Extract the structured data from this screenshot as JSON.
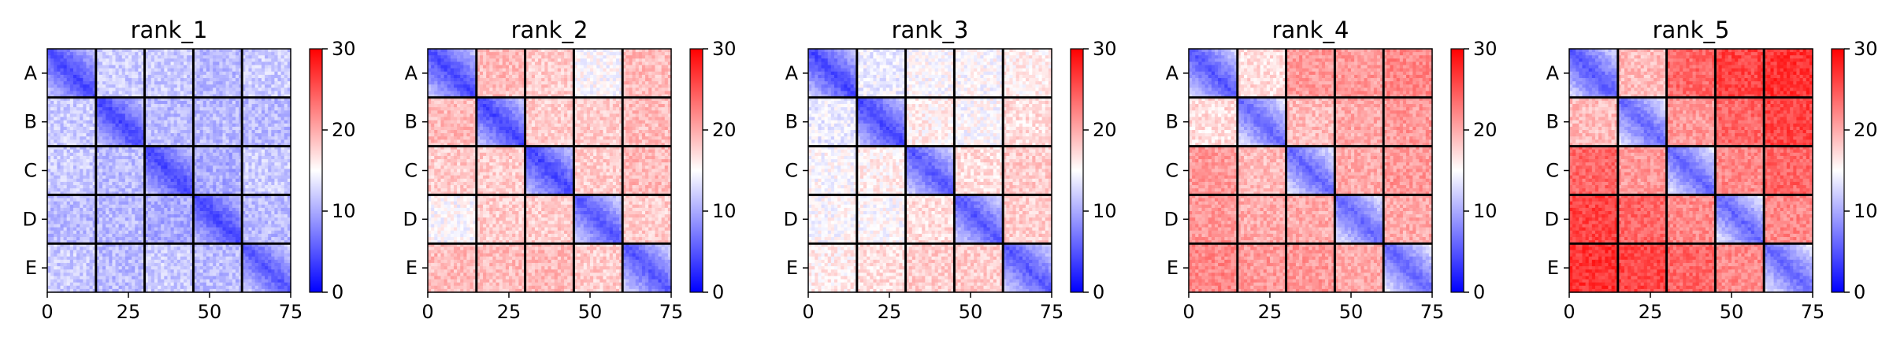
{
  "chart_data": [
    {
      "type": "heatmap",
      "title": "rank_1",
      "categories": [
        "A",
        "B",
        "C",
        "D",
        "E"
      ],
      "x_ticks": [
        0,
        25,
        50,
        75
      ],
      "xlim": [
        0,
        75
      ],
      "block_size": 15,
      "colorbar": {
        "min": 0,
        "max": 30,
        "ticks": [
          0,
          10,
          20,
          30
        ],
        "colors": [
          "#0000ff",
          "#ffffff",
          "#ff0000"
        ]
      },
      "block_values": [
        [
          4,
          12,
          12,
          11,
          12
        ],
        [
          12,
          4,
          11,
          11,
          11
        ],
        [
          12,
          11,
          4,
          10,
          12
        ],
        [
          11,
          11,
          10,
          4,
          11
        ],
        [
          12,
          11,
          12,
          11,
          5
        ]
      ]
    },
    {
      "type": "heatmap",
      "title": "rank_2",
      "categories": [
        "A",
        "B",
        "C",
        "D",
        "E"
      ],
      "x_ticks": [
        0,
        25,
        50,
        75
      ],
      "xlim": [
        0,
        75
      ],
      "block_size": 15,
      "colorbar": {
        "min": 0,
        "max": 30,
        "ticks": [
          0,
          10,
          20,
          30
        ],
        "colors": [
          "#0000ff",
          "#ffffff",
          "#ff0000"
        ]
      },
      "block_values": [
        [
          4,
          19,
          18,
          15,
          19
        ],
        [
          19,
          4,
          18,
          18,
          19
        ],
        [
          18,
          18,
          4,
          18,
          19
        ],
        [
          15,
          18,
          18,
          5,
          18
        ],
        [
          19,
          19,
          19,
          18,
          5
        ]
      ]
    },
    {
      "type": "heatmap",
      "title": "rank_3",
      "categories": [
        "A",
        "B",
        "C",
        "D",
        "E"
      ],
      "x_ticks": [
        0,
        25,
        50,
        75
      ],
      "xlim": [
        0,
        75
      ],
      "block_size": 15,
      "colorbar": {
        "min": 0,
        "max": 30,
        "ticks": [
          0,
          10,
          20,
          30
        ],
        "colors": [
          "#0000ff",
          "#ffffff",
          "#ff0000"
        ]
      },
      "block_values": [
        [
          4,
          14,
          15,
          15,
          16
        ],
        [
          14,
          4,
          16,
          15,
          17
        ],
        [
          15,
          16,
          5,
          17,
          18
        ],
        [
          15,
          15,
          17,
          5,
          18
        ],
        [
          16,
          17,
          18,
          18,
          5
        ]
      ]
    },
    {
      "type": "heatmap",
      "title": "rank_4",
      "categories": [
        "A",
        "B",
        "C",
        "D",
        "E"
      ],
      "x_ticks": [
        0,
        25,
        50,
        75
      ],
      "xlim": [
        0,
        75
      ],
      "block_size": 15,
      "colorbar": {
        "min": 0,
        "max": 30,
        "ticks": [
          0,
          10,
          20,
          30
        ],
        "colors": [
          "#0000ff",
          "#ffffff",
          "#ff0000"
        ]
      },
      "block_values": [
        [
          5,
          17,
          21,
          21,
          22
        ],
        [
          17,
          6,
          19,
          20,
          21
        ],
        [
          21,
          19,
          6,
          20,
          21
        ],
        [
          21,
          20,
          20,
          6,
          20
        ],
        [
          22,
          21,
          21,
          20,
          6
        ]
      ]
    },
    {
      "type": "heatmap",
      "title": "rank_5",
      "categories": [
        "A",
        "B",
        "C",
        "D",
        "E"
      ],
      "x_ticks": [
        0,
        25,
        50,
        75
      ],
      "xlim": [
        0,
        75
      ],
      "block_size": 15,
      "colorbar": {
        "min": 0,
        "max": 30,
        "ticks": [
          0,
          10,
          20,
          30
        ],
        "colors": [
          "#0000ff",
          "#ffffff",
          "#ff0000"
        ]
      },
      "block_values": [
        [
          5,
          19,
          24,
          26,
          27
        ],
        [
          19,
          6,
          21,
          24,
          26
        ],
        [
          24,
          21,
          6,
          22,
          24
        ],
        [
          26,
          24,
          22,
          6,
          22
        ],
        [
          27,
          26,
          24,
          22,
          6
        ]
      ]
    }
  ]
}
